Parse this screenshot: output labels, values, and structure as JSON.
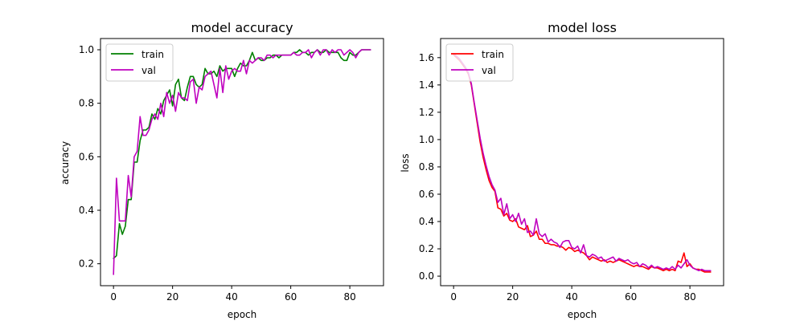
{
  "chart_data": [
    {
      "type": "line",
      "title": "model accuracy",
      "xlabel": "epoch",
      "ylabel": "accuracy",
      "xlim": [
        -4.4,
        91.4
      ],
      "ylim": [
        0.118,
        1.042
      ],
      "xticks": [
        0,
        20,
        40,
        60,
        80
      ],
      "yticks": [
        0.2,
        0.4,
        0.6,
        0.8,
        1.0
      ],
      "ytick_labels": [
        "0.2",
        "0.4",
        "0.6",
        "0.8",
        "1.0"
      ],
      "legend_position": "upper-left",
      "grid": false,
      "x": [
        0,
        1,
        2,
        3,
        4,
        5,
        6,
        7,
        8,
        9,
        10,
        11,
        12,
        13,
        14,
        15,
        16,
        17,
        18,
        19,
        20,
        21,
        22,
        23,
        24,
        25,
        26,
        27,
        28,
        29,
        30,
        31,
        32,
        33,
        34,
        35,
        36,
        37,
        38,
        39,
        40,
        41,
        42,
        43,
        44,
        45,
        46,
        47,
        48,
        49,
        50,
        51,
        52,
        53,
        54,
        55,
        56,
        57,
        58,
        59,
        60,
        61,
        62,
        63,
        64,
        65,
        66,
        67,
        68,
        69,
        70,
        71,
        72,
        73,
        74,
        75,
        76,
        77,
        78,
        79,
        80,
        81,
        82,
        83,
        84,
        85,
        86,
        87
      ],
      "series": [
        {
          "name": "train",
          "color": "#008000",
          "values": [
            0.22,
            0.23,
            0.35,
            0.31,
            0.34,
            0.44,
            0.44,
            0.58,
            0.58,
            0.66,
            0.7,
            0.7,
            0.71,
            0.76,
            0.74,
            0.78,
            0.76,
            0.81,
            0.83,
            0.85,
            0.79,
            0.87,
            0.89,
            0.82,
            0.81,
            0.86,
            0.9,
            0.9,
            0.87,
            0.86,
            0.87,
            0.93,
            0.91,
            0.91,
            0.92,
            0.9,
            0.94,
            0.92,
            0.93,
            0.93,
            0.93,
            0.9,
            0.93,
            0.95,
            0.94,
            0.94,
            0.96,
            0.99,
            0.96,
            0.97,
            0.96,
            0.96,
            0.97,
            0.97,
            0.98,
            0.98,
            0.97,
            0.98,
            0.98,
            0.98,
            0.98,
            0.99,
            0.99,
            1.0,
            0.99,
            0.99,
            0.98,
            0.99,
            0.99,
            1.0,
            0.99,
            0.99,
            1.0,
            0.99,
            0.99,
            0.99,
            0.99,
            0.97,
            0.96,
            0.96,
            0.99,
            0.98,
            0.98,
            0.99,
            1.0,
            1.0,
            1.0,
            1.0
          ]
        },
        {
          "name": "val",
          "color": "#bf00bf",
          "values": [
            0.16,
            0.52,
            0.36,
            0.36,
            0.36,
            0.53,
            0.45,
            0.6,
            0.62,
            0.75,
            0.68,
            0.68,
            0.7,
            0.74,
            0.76,
            0.74,
            0.8,
            0.75,
            0.84,
            0.8,
            0.83,
            0.77,
            0.84,
            0.82,
            0.82,
            0.81,
            0.88,
            0.89,
            0.8,
            0.86,
            0.85,
            0.9,
            0.91,
            0.92,
            0.87,
            0.82,
            0.93,
            0.84,
            0.94,
            0.89,
            0.92,
            0.93,
            0.92,
            0.92,
            0.96,
            0.91,
            0.96,
            0.95,
            0.96,
            0.97,
            0.97,
            0.96,
            0.98,
            0.98,
            0.97,
            0.98,
            0.98,
            0.98,
            0.98,
            0.98,
            0.98,
            0.99,
            0.98,
            0.98,
            0.99,
            0.99,
            1.0,
            0.97,
            0.99,
            1.0,
            0.98,
            1.0,
            1.0,
            0.98,
            1.0,
            0.99,
            1.0,
            1.0,
            0.98,
            0.99,
            1.0,
            0.99,
            0.97,
            0.99,
            1.0,
            1.0,
            1.0,
            1.0
          ]
        }
      ]
    },
    {
      "type": "line",
      "title": "model loss",
      "xlabel": "epoch",
      "ylabel": "loss",
      "xlim": [
        -4.4,
        91.4
      ],
      "ylim": [
        -0.07,
        1.74
      ],
      "xticks": [
        0,
        20,
        40,
        60,
        80
      ],
      "yticks": [
        0.0,
        0.2,
        0.4,
        0.6,
        0.8,
        1.0,
        1.2,
        1.4,
        1.6
      ],
      "ytick_labels": [
        "0.0",
        "0.2",
        "0.4",
        "0.6",
        "0.8",
        "1.0",
        "1.2",
        "1.4",
        "1.6"
      ],
      "legend_position": "upper-left",
      "grid": false,
      "x": [
        0,
        1,
        2,
        3,
        4,
        5,
        6,
        7,
        8,
        9,
        10,
        11,
        12,
        13,
        14,
        15,
        16,
        17,
        18,
        19,
        20,
        21,
        22,
        23,
        24,
        25,
        26,
        27,
        28,
        29,
        30,
        31,
        32,
        33,
        34,
        35,
        36,
        37,
        38,
        39,
        40,
        41,
        42,
        43,
        44,
        45,
        46,
        47,
        48,
        49,
        50,
        51,
        52,
        53,
        54,
        55,
        56,
        57,
        58,
        59,
        60,
        61,
        62,
        63,
        64,
        65,
        66,
        67,
        68,
        69,
        70,
        71,
        72,
        73,
        74,
        75,
        76,
        77,
        78,
        79,
        80,
        81,
        82,
        83,
        84,
        85,
        86,
        87
      ],
      "series": [
        {
          "name": "train",
          "color": "#ff0000",
          "values": [
            1.62,
            1.6,
            1.58,
            1.55,
            1.52,
            1.48,
            1.4,
            1.26,
            1.12,
            0.98,
            0.87,
            0.78,
            0.7,
            0.65,
            0.62,
            0.5,
            0.49,
            0.44,
            0.46,
            0.41,
            0.4,
            0.42,
            0.36,
            0.35,
            0.34,
            0.37,
            0.29,
            0.3,
            0.33,
            0.27,
            0.27,
            0.24,
            0.24,
            0.23,
            0.23,
            0.22,
            0.22,
            0.21,
            0.19,
            0.21,
            0.2,
            0.18,
            0.19,
            0.18,
            0.17,
            0.15,
            0.12,
            0.14,
            0.13,
            0.12,
            0.11,
            0.12,
            0.1,
            0.11,
            0.1,
            0.11,
            0.12,
            0.11,
            0.1,
            0.09,
            0.08,
            0.07,
            0.08,
            0.07,
            0.07,
            0.06,
            0.05,
            0.07,
            0.06,
            0.06,
            0.05,
            0.04,
            0.05,
            0.04,
            0.05,
            0.04,
            0.11,
            0.1,
            0.17,
            0.07,
            0.09,
            0.06,
            0.05,
            0.05,
            0.04,
            0.03,
            0.03,
            0.03
          ]
        },
        {
          "name": "val",
          "color": "#bf00bf",
          "values": [
            1.63,
            1.61,
            1.59,
            1.56,
            1.53,
            1.49,
            1.41,
            1.27,
            1.14,
            1.01,
            0.9,
            0.81,
            0.73,
            0.67,
            0.63,
            0.54,
            0.57,
            0.45,
            0.53,
            0.42,
            0.45,
            0.4,
            0.46,
            0.38,
            0.42,
            0.32,
            0.33,
            0.3,
            0.42,
            0.31,
            0.29,
            0.31,
            0.25,
            0.27,
            0.25,
            0.24,
            0.21,
            0.25,
            0.26,
            0.26,
            0.21,
            0.2,
            0.22,
            0.17,
            0.23,
            0.15,
            0.14,
            0.16,
            0.15,
            0.13,
            0.14,
            0.11,
            0.12,
            0.13,
            0.14,
            0.11,
            0.13,
            0.12,
            0.11,
            0.12,
            0.1,
            0.09,
            0.1,
            0.07,
            0.09,
            0.08,
            0.06,
            0.08,
            0.06,
            0.07,
            0.06,
            0.05,
            0.06,
            0.05,
            0.07,
            0.05,
            0.08,
            0.06,
            0.09,
            0.12,
            0.08,
            0.06,
            0.05,
            0.04,
            0.05,
            0.04,
            0.04,
            0.04
          ]
        }
      ]
    }
  ]
}
